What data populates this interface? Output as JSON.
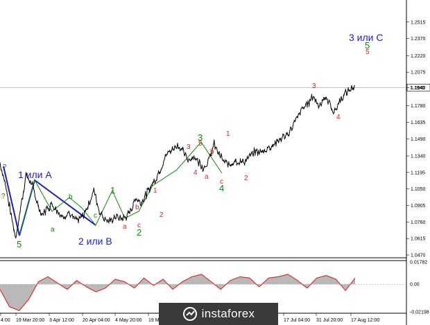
{
  "chart_data": [
    {
      "type": "line",
      "title": "",
      "ylim": [
        1.047,
        1.266
      ],
      "x_tick_labels": [
        "4:00",
        "19 Mar 20:00",
        "3 Apr 12:00",
        "20 Apr 04:00",
        "4 May 20:00",
        "19 M",
        "17 Jul 04:00",
        "31 Jul 20:00",
        "17 Aug 12:00"
      ],
      "y_tick_labels": [
        "1.2515",
        "1.2370",
        "1.2220",
        "1.2075",
        "1.1940",
        "1.1780",
        "1.1635",
        "1.1490",
        "1.1340",
        "1.1195",
        "1.1050",
        "1.0905",
        "1.0760",
        "1.0615",
        "1.0470"
      ],
      "current_price_label": "1.1940",
      "current_price": 1.194,
      "series": [
        {
          "values": [
            1.128,
            1.11,
            1.085,
            1.062,
            1.09,
            1.117,
            1.11,
            1.095,
            1.082,
            1.088,
            1.092,
            1.086,
            1.08,
            1.085,
            1.079,
            1.077,
            1.082,
            1.092,
            1.104,
            1.086,
            1.079,
            1.076,
            1.081,
            1.079,
            1.08,
            1.086,
            1.097,
            1.093,
            1.1,
            1.108,
            1.116,
            1.126,
            1.136,
            1.14,
            1.144,
            1.138,
            1.13,
            1.134,
            1.129,
            1.124,
            1.13,
            1.144,
            1.135,
            1.128,
            1.126,
            1.131,
            1.128,
            1.13,
            1.134,
            1.138,
            1.137,
            1.14,
            1.143,
            1.146,
            1.15,
            1.152,
            1.16,
            1.168,
            1.176,
            1.18,
            1.187,
            1.178,
            1.185,
            1.181,
            1.172,
            1.182,
            1.188,
            1.192,
            1.196
          ]
        }
      ],
      "wave_labels_blue": [
        "1 или A",
        "2 или B",
        "3 или C"
      ],
      "wave_labels_green": [
        "5",
        "1",
        "2",
        "3",
        "4",
        "5",
        "a",
        "b",
        "c",
        "?",
        "?"
      ],
      "wave_labels_red": [
        "a",
        "b",
        "c",
        "1",
        "2",
        "3",
        "4",
        "5",
        "a",
        "b",
        "c",
        "1",
        "2",
        "3",
        "4",
        "5"
      ]
    },
    {
      "type": "area",
      "title": "",
      "ylim": [
        -0.02198,
        0.01782
      ],
      "y_tick_labels": [
        "0.01782",
        "0.00",
        "-0.02198"
      ],
      "series": [
        {
          "values": [
            -0.004,
            -0.018,
            -0.021,
            -0.012,
            0.002,
            0.006,
            0.001,
            -0.004,
            0.003,
            -0.002,
            -0.006,
            -0.003,
            0.004,
            0.002,
            -0.003,
            0.005,
            -0.001,
            0.004,
            -0.004,
            0.002,
            0.006,
            0.008,
            0.002,
            -0.004,
            0.003,
            0.006,
            0.005,
            -0.002,
            0.005,
            0.006,
            0.008,
            0.003,
            -0.003,
            0.005,
            0.007,
            0.004,
            -0.005,
            0.005
          ]
        }
      ]
    }
  ],
  "logo": {
    "text": "instaforex"
  }
}
